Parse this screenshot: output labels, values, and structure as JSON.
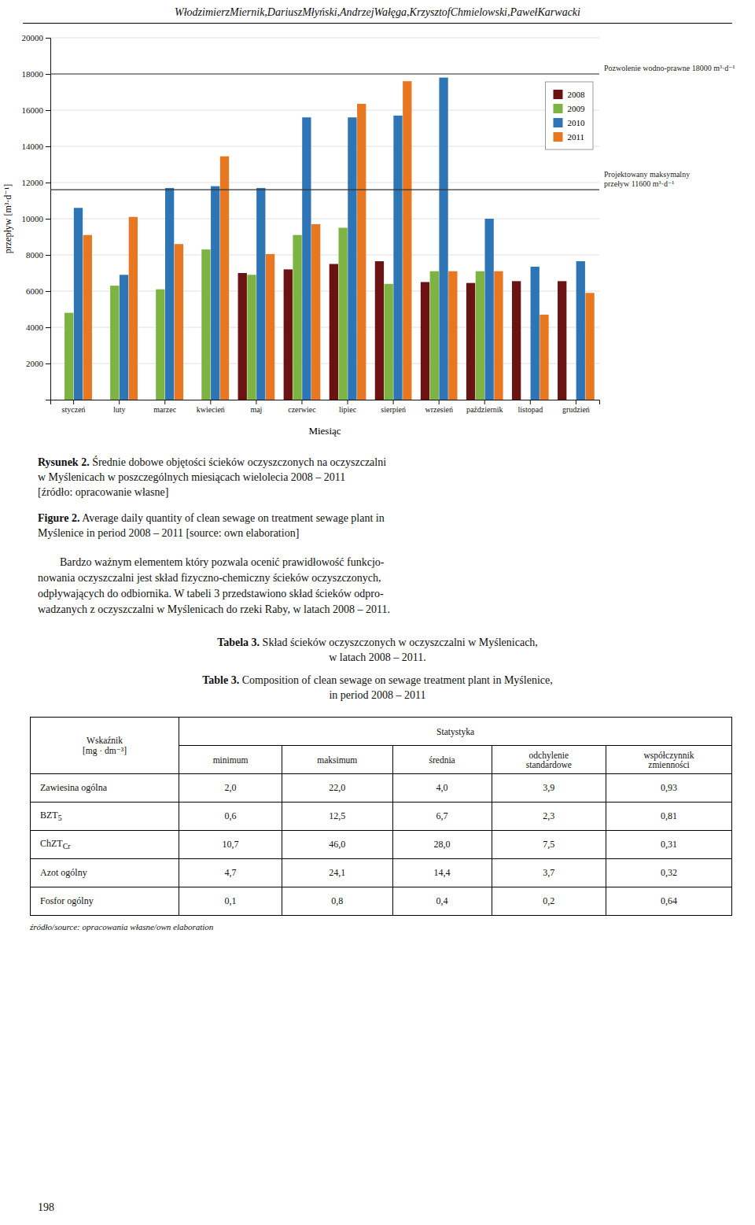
{
  "header": "WłodzimierzMiernik,DariuszMłyński,AndrzejWałęga,KrzysztofChmielowski,PawełKarwacki",
  "chart_data": {
    "type": "bar",
    "categories": [
      "styczeń",
      "luty",
      "marzec",
      "kwiecień",
      "maj",
      "czerwiec",
      "lipiec",
      "sierpień",
      "wrzesień",
      "październik",
      "listopad",
      "grudzień"
    ],
    "series": [
      {
        "name": "2008",
        "color": "#6B1212",
        "values": [
          0,
          0,
          0,
          0,
          7000,
          7200,
          7500,
          7650,
          6500,
          6450,
          6550,
          6550
        ]
      },
      {
        "name": "2009",
        "color": "#7CB342",
        "values": [
          4800,
          6300,
          6100,
          8300,
          6900,
          9100,
          9500,
          6400,
          7100,
          7100,
          0,
          0
        ]
      },
      {
        "name": "2010",
        "color": "#2E75B6",
        "values": [
          10600,
          6900,
          11700,
          11800,
          11700,
          15600,
          15600,
          15700,
          17800,
          10000,
          7350,
          7650
        ]
      },
      {
        "name": "2011",
        "color": "#E87722",
        "values": [
          9100,
          10100,
          8600,
          13450,
          8050,
          9700,
          16350,
          17600,
          7100,
          7100,
          4700,
          5900
        ]
      }
    ],
    "xlabel": "Miesiąc",
    "ylabel": "przepływ [m³·d⁻¹]",
    "ylim": [
      0,
      20000
    ],
    "yticks": [
      2000,
      4000,
      6000,
      8000,
      10000,
      12000,
      14000,
      16000,
      18000,
      20000
    ],
    "grid": true,
    "legend": "top-right",
    "annotations": [
      {
        "y": 18000,
        "text": "Pozwolenie wodno-prawne 18000 m³·d⁻¹"
      },
      {
        "y": 11600,
        "text": "Projektowany maksymalny\nprzeływ 11600 m³·d⁻¹"
      }
    ]
  },
  "captions": [
    {
      "bold": "Rysunek 2.",
      "text": " Średnie dobowe objętości ścieków oczyszczonych na oczyszczalni\nw Myślenicach w poszczególnych miesiącach wielolecia 2008 – 2011\n[źródło: opracowanie własne]"
    },
    {
      "bold": "Figure 2.",
      "text": " Average daily quantity of clean sewage on treatment sewage plant in\nMyślenice in period 2008 – 2011 [source: own elaboration]"
    }
  ],
  "paragraph": "        Bardzo ważnym elementem który pozwala ocenić prawidłowość funkcjo-\nnowania oczyszczalni jest skład fizyczno-chemiczny ścieków oczyszczonych,\nodpływających do odbiornika. W tabeli 3 przedstawiono skład ścieków odpro-\nwadzanych z oczyszczalni w Myślenicach do rzeki Raby, w latach 2008 – 2011.",
  "table_captions": [
    {
      "bold": "Tabela 3.",
      "text": " Skład ścieków oczyszczonych w oczyszczalni w Myślenicach,\nw latach 2008 – 2011."
    },
    {
      "bold": "Table 3.",
      "text": " Composition of clean sewage on sewage treatment plant in Myślenice,\nin period 2008 – 2011"
    }
  ],
  "table": {
    "header_col0": [
      "Wskaźnik",
      "[mg · dm⁻³]"
    ],
    "header_group": "Statystyka",
    "col_headers": [
      "minimum",
      "maksimum",
      "średnia",
      "odchylenie\nstandardowe",
      "współczynnik\nzmienności"
    ],
    "rows": [
      [
        "Zawiesina ogólna",
        "2,0",
        "22,0",
        "4,0",
        "3,9",
        "0,93"
      ],
      [
        {
          "text": "BZT",
          "sub": "5"
        },
        "0,6",
        "12,5",
        "6,7",
        "2,3",
        "0,81"
      ],
      [
        {
          "text": "ChZT",
          "sub": "Cr"
        },
        "10,7",
        "46,0",
        "28,0",
        "7,5",
        "0,31"
      ],
      [
        "Azot ogólny",
        "4,7",
        "24,1",
        "14,4",
        "3,7",
        "0,32"
      ],
      [
        "Fosfor ogólny",
        "0,1",
        "0,8",
        "0,4",
        "0,2",
        "0,64"
      ]
    ]
  },
  "table_source": "źródło/source: opracowania własne/own elaboration",
  "page_number": "198"
}
